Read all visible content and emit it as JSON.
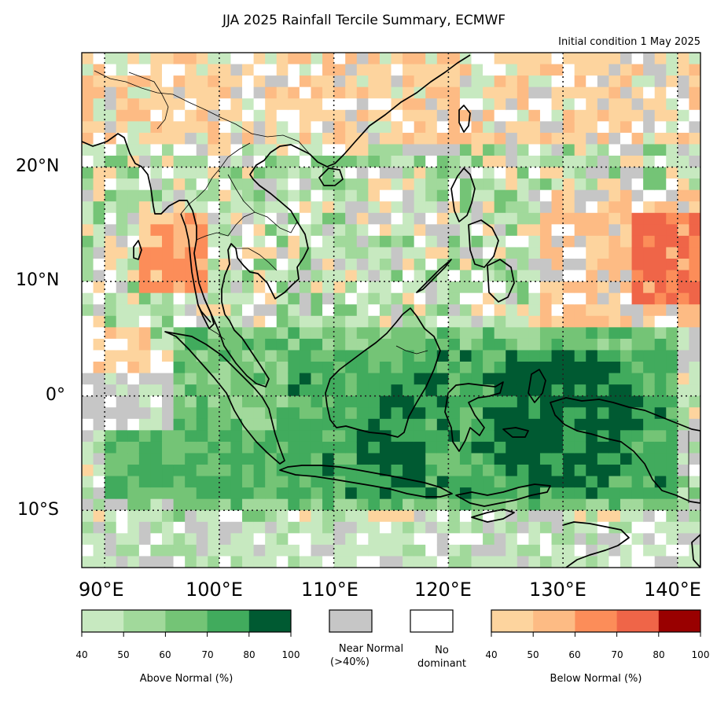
{
  "figure": {
    "title": "JJA 2025 Rainfall Tercile Summary, ECMWF",
    "subtitle": "Initial condition 1 May 2025"
  },
  "map": {
    "lon_range": [
      88,
      142
    ],
    "lat_range": [
      -15,
      30
    ],
    "latitude_labels": [
      {
        "lat": 20,
        "text": "20°N"
      },
      {
        "lat": 10,
        "text": "10°N"
      },
      {
        "lat": 0,
        "text": "0°"
      },
      {
        "lat": -10,
        "text": "10°S"
      }
    ],
    "longitude_labels": [
      {
        "lon": 90,
        "text": "90°E"
      },
      {
        "lon": 100,
        "text": "100°E"
      },
      {
        "lon": 110,
        "text": "110°E"
      },
      {
        "lon": 120,
        "text": "120°E"
      },
      {
        "lon": 130,
        "text": "130°E"
      },
      {
        "lon": 140,
        "text": "140°E"
      }
    ],
    "gridlines": "dotted",
    "category_colors": {
      "G1": "#c7e9c0",
      "G2": "#a1d99b",
      "G3": "#74c476",
      "G4": "#41ab5d",
      "G5": "#005a32",
      "N": "#c6c6c6",
      "W": "#ffffff",
      "O1": "#fdd49e",
      "O2": "#fdbb84",
      "O3": "#fc8d59",
      "O4": "#ef6548",
      "O5": "#990000"
    }
  },
  "legend": {
    "above_normal": {
      "colors": [
        "#c7e9c0",
        "#a1d99b",
        "#74c476",
        "#41ab5d",
        "#005a32"
      ],
      "ticks": [
        "40",
        "50",
        "60",
        "70",
        "80",
        "100"
      ],
      "label": "Above Normal (%)"
    },
    "near_normal": {
      "color": "#c6c6c6",
      "label_line1": "Near Normal",
      "label_line2": "(>40%)"
    },
    "no_dominant": {
      "color": "#ffffff",
      "label_line1": "No",
      "label_line2": "dominant"
    },
    "below_normal": {
      "colors": [
        "#fdd49e",
        "#fdbb84",
        "#fc8d59",
        "#ef6548",
        "#990000"
      ],
      "ticks": [
        "40",
        "50",
        "60",
        "70",
        "80",
        "100"
      ],
      "label": "Below Normal (%)"
    }
  }
}
